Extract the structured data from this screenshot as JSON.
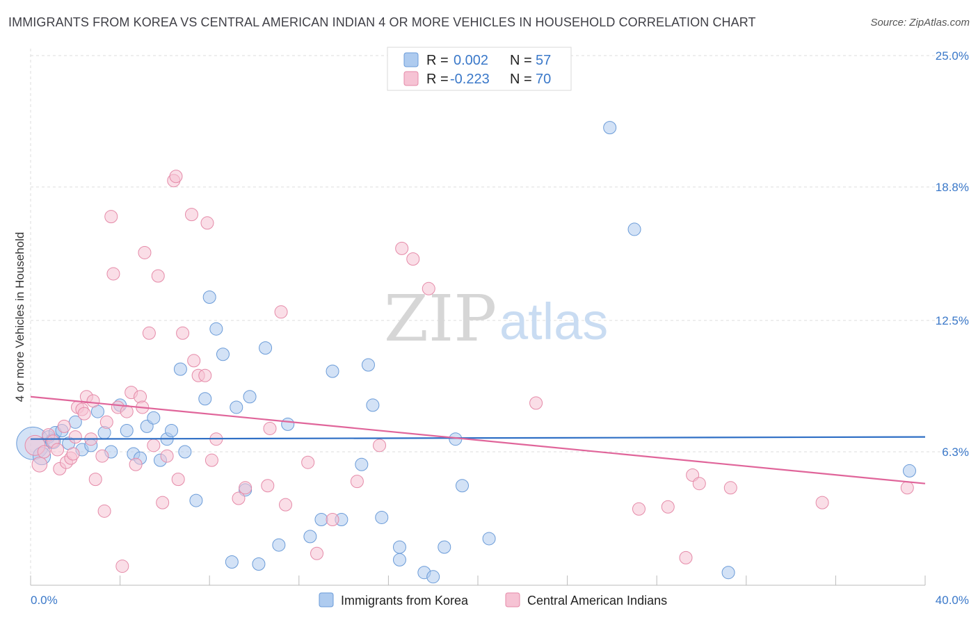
{
  "header": {
    "title": "IMMIGRANTS FROM KOREA VS CENTRAL AMERICAN INDIAN 4 OR MORE VEHICLES IN HOUSEHOLD CORRELATION CHART",
    "source": "Source: ZipAtlas.com"
  },
  "watermark": {
    "zip": "ZIP",
    "atlas": "atlas"
  },
  "colors": {
    "korea_fill": "#aecbef",
    "korea_stroke": "#6a9bd8",
    "korea_line": "#2f6fc5",
    "cai_fill": "#f6c3d4",
    "cai_stroke": "#e58aa8",
    "cai_line": "#e0659a",
    "grid": "#dddddd",
    "axis_text": "#3a78c9"
  },
  "legend": {
    "rows": [
      {
        "r_label": "R = ",
        "r_value": "0.002",
        "n_label": "N = ",
        "n_value": "57"
      },
      {
        "r_label": "R = ",
        "r_value": "-0.223",
        "n_label": "N = ",
        "n_value": "70"
      }
    ]
  },
  "chart_data": {
    "type": "scatter",
    "title": "IMMIGRANTS FROM KOREA VS CENTRAL AMERICAN INDIAN 4 OR MORE VEHICLES IN HOUSEHOLD CORRELATION CHART",
    "xlabel": "",
    "ylabel": "4 or more Vehicles in Household",
    "xlim": [
      0,
      40
    ],
    "ylim": [
      0,
      25.0
    ],
    "x_tick_labels": [
      "0.0%",
      "40.0%"
    ],
    "y_ticks": [
      6.3,
      12.5,
      18.8,
      25.0
    ],
    "y_tick_labels": [
      "6.3%",
      "12.5%",
      "18.8%",
      "25.0%"
    ],
    "grid": true,
    "legend_placement": "top-center",
    "series": [
      {
        "name": "Immigrants from Korea",
        "R": 0.002,
        "N": 57,
        "trend": {
          "x": [
            0,
            40
          ],
          "y": [
            6.9,
            7.0
          ]
        },
        "points": [
          [
            0.1,
            6.7,
            2.6
          ],
          [
            0.5,
            6.1,
            1.4
          ],
          [
            0.8,
            7.0,
            1.0
          ],
          [
            1.0,
            6.8,
            1.2
          ],
          [
            1.1,
            7.2,
            1.0
          ],
          [
            1.4,
            7.3,
            1.0
          ],
          [
            1.7,
            6.7,
            1.0
          ],
          [
            2.0,
            7.7,
            1.0
          ],
          [
            2.3,
            6.4,
            1.0
          ],
          [
            2.7,
            6.6,
            1.0
          ],
          [
            3.0,
            8.2,
            1.0
          ],
          [
            3.3,
            7.2,
            1.0
          ],
          [
            3.6,
            6.3,
            1.0
          ],
          [
            4.0,
            8.5,
            1.0
          ],
          [
            4.3,
            7.3,
            1.0
          ],
          [
            4.6,
            6.2,
            1.0
          ],
          [
            4.9,
            6.0,
            1.0
          ],
          [
            5.2,
            7.5,
            1.0
          ],
          [
            5.5,
            7.9,
            1.0
          ],
          [
            5.8,
            5.9,
            1.0
          ],
          [
            6.1,
            6.9,
            1.0
          ],
          [
            6.3,
            7.3,
            1.0
          ],
          [
            6.7,
            10.2,
            1.0
          ],
          [
            6.9,
            6.3,
            1.0
          ],
          [
            7.4,
            4.0,
            1.0
          ],
          [
            7.8,
            8.8,
            1.0
          ],
          [
            8.0,
            13.6,
            1.0
          ],
          [
            8.3,
            12.1,
            1.0
          ],
          [
            8.6,
            10.9,
            1.0
          ],
          [
            9.0,
            1.1,
            1.0
          ],
          [
            9.2,
            8.4,
            1.0
          ],
          [
            9.6,
            4.5,
            1.0
          ],
          [
            9.8,
            8.9,
            1.0
          ],
          [
            10.2,
            1.0,
            1.0
          ],
          [
            10.5,
            11.2,
            1.0
          ],
          [
            11.1,
            1.9,
            1.0
          ],
          [
            11.5,
            7.6,
            1.0
          ],
          [
            12.5,
            2.3,
            1.0
          ],
          [
            13.0,
            3.1,
            1.0
          ],
          [
            13.5,
            10.1,
            1.0
          ],
          [
            13.9,
            3.1,
            1.0
          ],
          [
            14.8,
            5.7,
            1.0
          ],
          [
            15.1,
            10.4,
            1.0
          ],
          [
            15.3,
            8.5,
            1.0
          ],
          [
            15.7,
            3.2,
            1.0
          ],
          [
            16.5,
            1.8,
            1.0
          ],
          [
            16.5,
            1.2,
            1.0
          ],
          [
            17.6,
            0.6,
            1.0
          ],
          [
            18.0,
            0.4,
            1.0
          ],
          [
            18.5,
            1.8,
            1.0
          ],
          [
            19.0,
            6.9,
            1.0
          ],
          [
            19.3,
            4.7,
            1.0
          ],
          [
            20.5,
            2.2,
            1.0
          ],
          [
            25.9,
            21.6,
            1.0
          ],
          [
            27.0,
            16.8,
            1.0
          ],
          [
            31.2,
            0.6,
            1.0
          ],
          [
            39.3,
            5.4,
            1.0
          ]
        ]
      },
      {
        "name": "Central American Indians",
        "R": -0.223,
        "N": 70,
        "trend": {
          "x": [
            0,
            40
          ],
          "y": [
            8.9,
            4.8
          ]
        },
        "points": [
          [
            0.2,
            6.6,
            1.6
          ],
          [
            0.4,
            5.7,
            1.2
          ],
          [
            0.6,
            6.3,
            1.0
          ],
          [
            0.8,
            7.1,
            1.0
          ],
          [
            1.0,
            6.8,
            1.0
          ],
          [
            1.2,
            6.4,
            1.0
          ],
          [
            1.3,
            5.5,
            1.0
          ],
          [
            1.5,
            7.5,
            1.0
          ],
          [
            1.6,
            5.8,
            1.0
          ],
          [
            1.8,
            6.0,
            1.0
          ],
          [
            1.9,
            6.2,
            1.0
          ],
          [
            2.0,
            7.0,
            1.0
          ],
          [
            2.1,
            8.4,
            1.0
          ],
          [
            2.3,
            8.3,
            1.0
          ],
          [
            2.4,
            8.1,
            1.0
          ],
          [
            2.5,
            8.9,
            1.0
          ],
          [
            2.7,
            6.9,
            1.0
          ],
          [
            2.8,
            8.7,
            1.0
          ],
          [
            2.9,
            5.0,
            1.0
          ],
          [
            3.2,
            6.1,
            1.0
          ],
          [
            3.3,
            3.5,
            1.0
          ],
          [
            3.4,
            7.7,
            1.0
          ],
          [
            3.6,
            17.4,
            1.0
          ],
          [
            3.7,
            14.7,
            1.0
          ],
          [
            3.9,
            8.4,
            1.0
          ],
          [
            4.1,
            0.9,
            1.0
          ],
          [
            4.3,
            8.2,
            1.0
          ],
          [
            4.5,
            9.1,
            1.0
          ],
          [
            4.7,
            5.7,
            1.0
          ],
          [
            4.9,
            8.9,
            1.0
          ],
          [
            5.0,
            8.4,
            1.0
          ],
          [
            5.1,
            15.7,
            1.0
          ],
          [
            5.3,
            11.9,
            1.0
          ],
          [
            5.5,
            6.6,
            1.0
          ],
          [
            5.7,
            14.6,
            1.0
          ],
          [
            5.9,
            3.9,
            1.0
          ],
          [
            6.1,
            6.1,
            1.0
          ],
          [
            6.4,
            19.1,
            1.0
          ],
          [
            6.5,
            19.3,
            1.0
          ],
          [
            6.6,
            5.0,
            1.0
          ],
          [
            6.8,
            11.9,
            1.0
          ],
          [
            7.2,
            17.5,
            1.0
          ],
          [
            7.3,
            10.6,
            1.0
          ],
          [
            7.5,
            9.9,
            1.0
          ],
          [
            7.8,
            9.9,
            1.0
          ],
          [
            7.9,
            17.1,
            1.0
          ],
          [
            8.1,
            5.9,
            1.0
          ],
          [
            8.3,
            6.9,
            1.0
          ],
          [
            9.3,
            4.1,
            1.0
          ],
          [
            9.6,
            4.6,
            1.0
          ],
          [
            10.6,
            4.7,
            1.0
          ],
          [
            10.7,
            7.4,
            1.0
          ],
          [
            11.2,
            12.9,
            1.0
          ],
          [
            11.4,
            3.8,
            1.0
          ],
          [
            12.4,
            5.8,
            1.0
          ],
          [
            12.8,
            1.5,
            1.0
          ],
          [
            13.5,
            3.1,
            1.0
          ],
          [
            14.6,
            4.9,
            1.0
          ],
          [
            15.6,
            6.6,
            1.0
          ],
          [
            16.6,
            15.9,
            1.0
          ],
          [
            17.1,
            15.4,
            1.0
          ],
          [
            17.8,
            14.0,
            1.0
          ],
          [
            22.6,
            8.6,
            1.0
          ],
          [
            27.2,
            3.6,
            1.0
          ],
          [
            28.5,
            3.7,
            1.0
          ],
          [
            29.3,
            1.3,
            1.0
          ],
          [
            29.6,
            5.2,
            1.0
          ],
          [
            29.9,
            4.8,
            1.0
          ],
          [
            31.3,
            4.6,
            1.0
          ],
          [
            35.4,
            3.9,
            1.0
          ],
          [
            39.2,
            4.6,
            1.0
          ]
        ]
      }
    ]
  }
}
